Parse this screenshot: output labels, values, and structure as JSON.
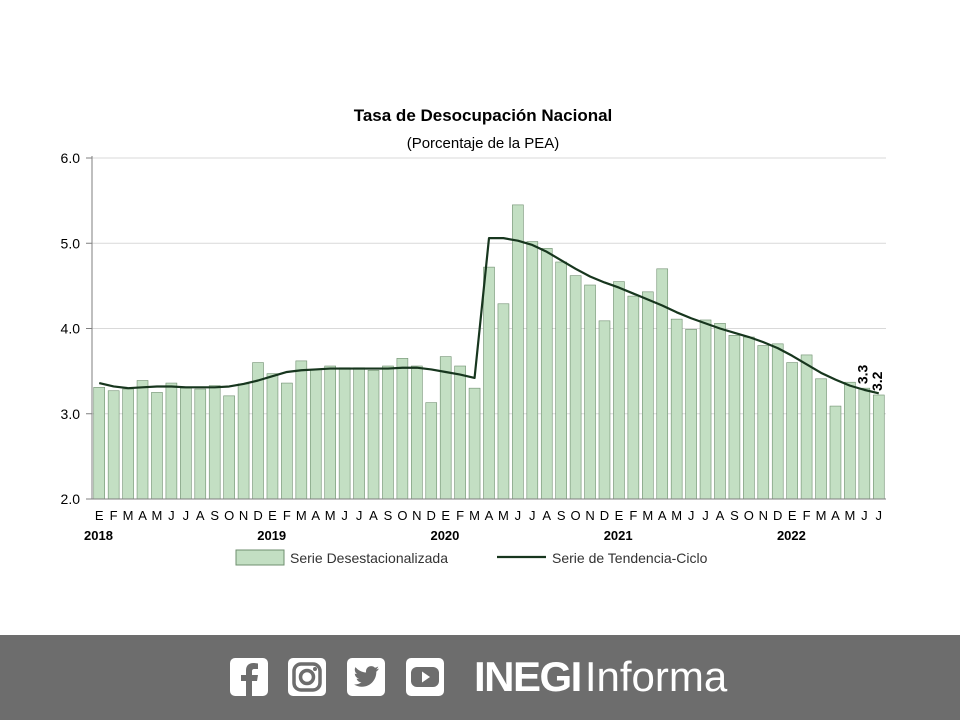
{
  "chart_data": {
    "type": "bar",
    "title": "Tasa de Desocupación Nacional",
    "subtitle": "(Porcentaje de la PEA)",
    "ylim": [
      2.0,
      6.0
    ],
    "yticks": [
      "6.0",
      "5.0",
      "4.0",
      "3.0",
      "2.0"
    ],
    "grid": true,
    "legend_placement": "bottom",
    "categories": [
      "E",
      "F",
      "M",
      "A",
      "M",
      "J",
      "J",
      "A",
      "S",
      "O",
      "N",
      "D",
      "E",
      "F",
      "M",
      "A",
      "M",
      "J",
      "J",
      "A",
      "S",
      "O",
      "N",
      "D",
      "E",
      "F",
      "M",
      "A",
      "M",
      "J",
      "J",
      "A",
      "S",
      "O",
      "N",
      "D",
      "E",
      "F",
      "M",
      "A",
      "M",
      "J",
      "J",
      "A",
      "S",
      "O",
      "N",
      "D",
      "E",
      "F",
      "M",
      "A",
      "M",
      "J",
      "J"
    ],
    "years": [
      {
        "label": "2018",
        "start_index": 0
      },
      {
        "label": "2019",
        "start_index": 12
      },
      {
        "label": "2020",
        "start_index": 24
      },
      {
        "label": "2021",
        "start_index": 36
      },
      {
        "label": "2022",
        "start_index": 48
      }
    ],
    "series": [
      {
        "name": "Serie Desestacionalizada",
        "kind": "bar",
        "color": "#c3dfc3",
        "border": "#6f8f6f",
        "values": [
          3.31,
          3.27,
          3.29,
          3.39,
          3.25,
          3.36,
          3.3,
          3.29,
          3.33,
          3.21,
          3.35,
          3.6,
          3.47,
          3.36,
          3.62,
          3.52,
          3.56,
          3.54,
          3.54,
          3.51,
          3.56,
          3.65,
          3.56,
          3.13,
          3.67,
          3.56,
          3.3,
          4.72,
          4.29,
          5.45,
          5.02,
          4.94,
          4.78,
          4.62,
          4.51,
          4.09,
          4.55,
          4.38,
          4.43,
          4.7,
          4.11,
          3.99,
          4.1,
          4.06,
          3.92,
          3.9,
          3.8,
          3.82,
          3.6,
          3.69,
          3.41,
          3.09,
          3.37,
          3.3,
          3.22
        ]
      },
      {
        "name": "Serie de Tendencia-Ciclo",
        "kind": "line",
        "color": "#17361e",
        "values": [
          3.36,
          3.32,
          3.3,
          3.31,
          3.32,
          3.32,
          3.31,
          3.31,
          3.31,
          3.32,
          3.35,
          3.39,
          3.44,
          3.49,
          3.51,
          3.52,
          3.53,
          3.53,
          3.53,
          3.53,
          3.53,
          3.54,
          3.54,
          3.52,
          3.49,
          3.46,
          3.42,
          5.06,
          5.06,
          5.03,
          4.98,
          4.9,
          4.8,
          4.7,
          4.61,
          4.54,
          4.48,
          4.41,
          4.34,
          4.27,
          4.19,
          4.12,
          4.06,
          4.0,
          3.95,
          3.9,
          3.84,
          3.77,
          3.68,
          3.58,
          3.48,
          3.4,
          3.33,
          3.28,
          3.24
        ]
      }
    ],
    "annotations": [
      "3.3",
      "3.2"
    ]
  },
  "footer": {
    "social_icons": [
      "facebook-icon",
      "instagram-icon",
      "twitter-icon",
      "youtube-icon"
    ],
    "brand_bold": "INEGI",
    "brand_regular": "Informa",
    "background": "#6d6d6d"
  }
}
